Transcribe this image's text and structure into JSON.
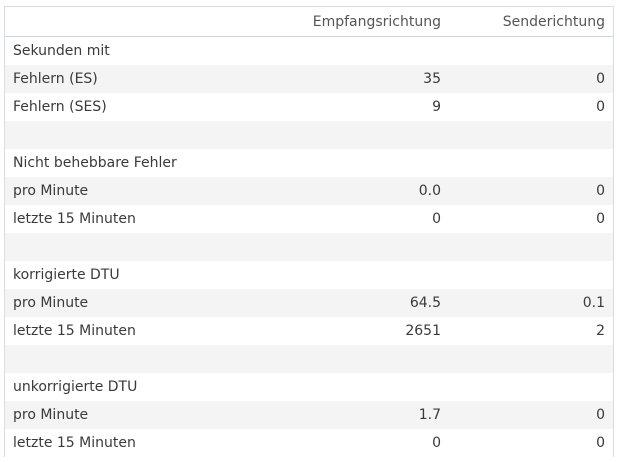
{
  "header": {
    "col_rx": "Empfangsrichtung",
    "col_tx": "Senderichtung"
  },
  "rows": [
    {
      "label": "Sekunden mit",
      "rx": "",
      "tx": ""
    },
    {
      "label": "Fehlern (ES)",
      "rx": "35",
      "tx": "0"
    },
    {
      "label": "Fehlern (SES)",
      "rx": "9",
      "tx": "0"
    },
    {
      "label": "",
      "rx": "",
      "tx": ""
    },
    {
      "label": "Nicht behebbare Fehler",
      "rx": "",
      "tx": ""
    },
    {
      "label": "pro Minute",
      "rx": "0.0",
      "tx": "0"
    },
    {
      "label": "letzte 15 Minuten",
      "rx": "0",
      "tx": "0"
    },
    {
      "label": "",
      "rx": "",
      "tx": ""
    },
    {
      "label": "korrigierte DTU",
      "rx": "",
      "tx": ""
    },
    {
      "label": "pro Minute",
      "rx": "64.5",
      "tx": "0.1"
    },
    {
      "label": "letzte 15 Minuten",
      "rx": "2651",
      "tx": "2"
    },
    {
      "label": "",
      "rx": "",
      "tx": ""
    },
    {
      "label": "unkorrigierte DTU",
      "rx": "",
      "tx": ""
    },
    {
      "label": "pro Minute",
      "rx": "1.7",
      "tx": "0"
    },
    {
      "label": "letzte 15 Minuten",
      "rx": "0",
      "tx": "0"
    }
  ]
}
